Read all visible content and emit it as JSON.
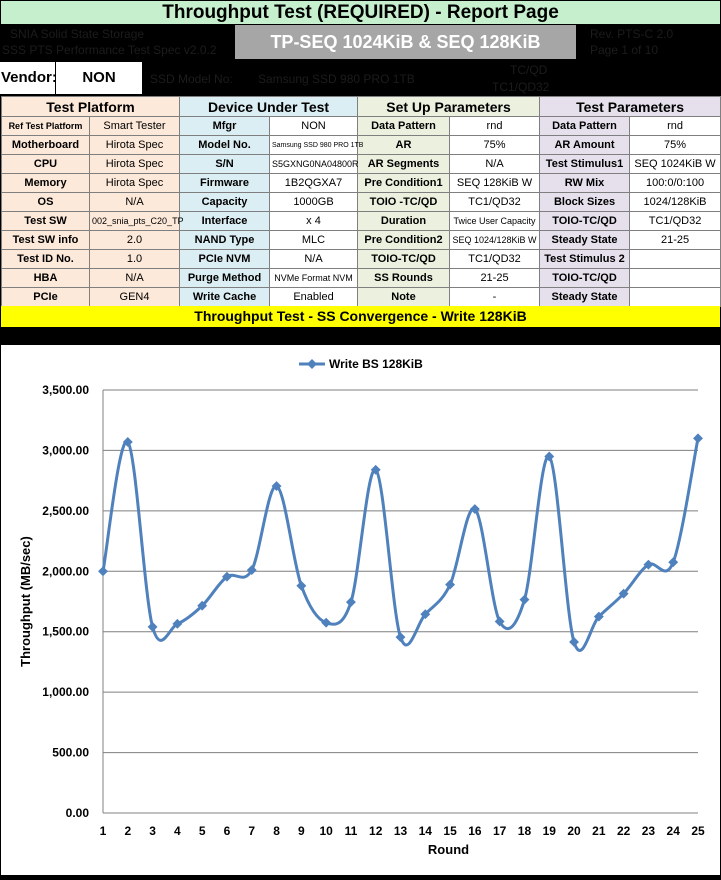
{
  "report": {
    "title": "Throughput Test (REQUIRED) - Report Page",
    "test_name": "TP-SEQ 1024KiB & SEQ 128KiB",
    "header_left_top": "SNIA Solid State Storage",
    "header_left_bottom": "SSS PTS Performance Test Spec v2.0.2",
    "header_right_top": "Rev.  PTS-C 2.0",
    "header_right_bottom": "Page     1 of 10",
    "vendor_label": "Vendor:",
    "vendor_value": "NON",
    "model_text": "SSD Model No:",
    "serial_text": "Samsung SSD 980 PRO 1TB",
    "tio_top": "TC/QD",
    "tio_bottom": "TC1/QD32"
  },
  "table": {
    "headers": [
      "Test Platform",
      "Device Under Test",
      "Set Up Parameters",
      "Test Parameters"
    ],
    "rows": [
      [
        "Ref Test Platform",
        "Smart Tester",
        "Mfgr",
        "NON",
        "Data Pattern",
        "rnd",
        "Data Pattern",
        "rnd"
      ],
      [
        "Motherboard",
        "Hirota Spec",
        "Model No.",
        "Samsung SSD 980 PRO 1TB",
        "AR",
        "75%",
        "AR Amount",
        "75%"
      ],
      [
        "CPU",
        "Hirota Spec",
        "S/N",
        "S5GXNG0NA04800R",
        "AR Segments",
        "N/A",
        "Test Stimulus1",
        "SEQ 1024KiB W"
      ],
      [
        "Memory",
        "Hirota Spec",
        "Firmware",
        "1B2QGXA7",
        "Pre Condition1",
        "SEQ 128KiB W",
        "RW Mix",
        "100:0/0:100"
      ],
      [
        "OS",
        "N/A",
        "Capacity",
        "1000GB",
        "TOIO -TC/QD",
        "TC1/QD32",
        "Block Sizes",
        "1024/128KiB"
      ],
      [
        "Test SW",
        "002_snia_pts_C20_TP",
        "Interface",
        "x 4",
        "Duration",
        "Twice User Capacity",
        "TOIO-TC/QD",
        "TC1/QD32"
      ],
      [
        "Test SW info",
        "2.0",
        "NAND Type",
        "MLC",
        "Pre Condition2",
        "SEQ 1024/128KiB W",
        "Steady State",
        "21-25"
      ],
      [
        "Test ID No.",
        "1.0",
        "PCIe NVM",
        "N/A",
        "TOIO-TC/QD",
        "TC1/QD32",
        "Test Stimulus 2",
        ""
      ],
      [
        "HBA",
        "N/A",
        "Purge Method",
        "NVMe Format NVM",
        "SS Rounds",
        "21-25",
        "TOIO-TC/QD",
        ""
      ],
      [
        "PCIe",
        "GEN4",
        "Write Cache",
        "Enabled",
        "Note",
        "-",
        "Steady State",
        ""
      ]
    ]
  },
  "section_title": "Throughput Test - SS Convergence - Write 128KiB",
  "chart_data": {
    "type": "line",
    "title": "",
    "xlabel": "Round",
    "ylabel": "Throughput (MB/sec)",
    "ylim": [
      0,
      3500
    ],
    "ytick_step": 500,
    "ytick_labels": [
      "0.00",
      "500.00",
      "1,000.00",
      "1,500.00",
      "2,000.00",
      "2,500.00",
      "3,000.00",
      "3,500.00"
    ],
    "grid": true,
    "legend": "top",
    "x": [
      1,
      2,
      3,
      4,
      5,
      6,
      7,
      8,
      9,
      10,
      11,
      12,
      13,
      14,
      15,
      16,
      17,
      18,
      19,
      20,
      21,
      22,
      23,
      24,
      25
    ],
    "series": [
      {
        "name": "Write BS 128KiB",
        "color": "#4f81bd",
        "values": [
          2000,
          3070,
          1540,
          1565,
          1715,
          1955,
          2010,
          2705,
          1880,
          1575,
          1745,
          2840,
          1455,
          1645,
          1890,
          2515,
          1585,
          1765,
          2950,
          1415,
          1625,
          1815,
          2055,
          2075,
          3100
        ]
      }
    ]
  }
}
